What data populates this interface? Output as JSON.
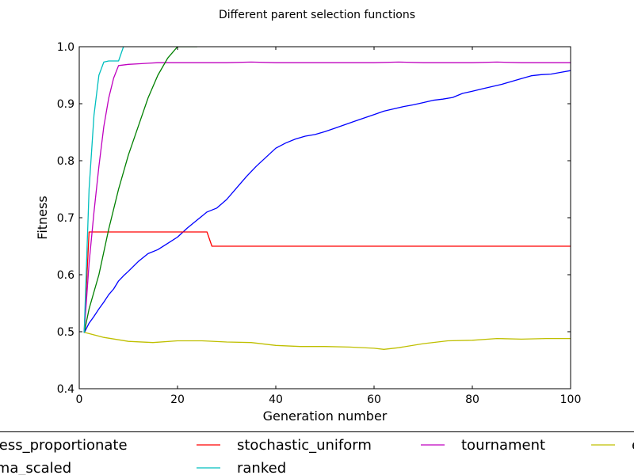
{
  "chart_data": {
    "type": "line",
    "title": "Different parent selection functions",
    "xlabel": "Generation number",
    "ylabel": "Fitness",
    "xlim": [
      0,
      100
    ],
    "ylim": [
      0.4,
      1.0
    ],
    "xticks": [
      0,
      20,
      40,
      60,
      80,
      100
    ],
    "yticks": [
      0.4,
      0.5,
      0.6,
      0.7,
      0.8,
      0.9,
      1.0
    ],
    "xtick_labels": [
      "0",
      "20",
      "40",
      "60",
      "80",
      "100"
    ],
    "ytick_labels": [
      "0.4",
      "0.5",
      "0.6",
      "0.7",
      "0.8",
      "0.9",
      "1.0"
    ],
    "grid": false,
    "legend_position": "bottom, outside plot, 4 columns",
    "legend_items": [
      {
        "label": "fitness_proportionate",
        "color": "#0000ff"
      },
      {
        "label": "stochastic_uniform",
        "color": "#ff0000"
      },
      {
        "label": "tournament",
        "color": "#bf00bf"
      },
      {
        "label": "e",
        "color": "#bfbf00"
      },
      {
        "label": "sigma_scaled",
        "color": "#008000"
      },
      {
        "label": "ranked",
        "color": "#00bfbf"
      }
    ],
    "series": [
      {
        "name": "fitness_proportionate",
        "color": "#0000ff",
        "x": [
          1,
          2,
          3,
          4,
          5,
          6,
          7,
          8,
          9,
          10,
          12,
          14,
          16,
          18,
          20,
          22,
          24,
          26,
          28,
          30,
          32,
          34,
          36,
          38,
          40,
          42,
          44,
          46,
          48,
          50,
          52,
          54,
          56,
          58,
          60,
          62,
          64,
          66,
          68,
          70,
          72,
          74,
          76,
          78,
          80,
          82,
          84,
          86,
          88,
          90,
          92,
          94,
          96,
          98,
          100
        ],
        "y": [
          0.498,
          0.515,
          0.527,
          0.54,
          0.552,
          0.565,
          0.575,
          0.589,
          0.598,
          0.606,
          0.623,
          0.637,
          0.644,
          0.655,
          0.666,
          0.682,
          0.696,
          0.71,
          0.717,
          0.732,
          0.752,
          0.772,
          0.79,
          0.806,
          0.822,
          0.831,
          0.838,
          0.843,
          0.846,
          0.851,
          0.857,
          0.863,
          0.869,
          0.875,
          0.881,
          0.887,
          0.891,
          0.895,
          0.898,
          0.902,
          0.906,
          0.908,
          0.911,
          0.918,
          0.922,
          0.926,
          0.93,
          0.934,
          0.939,
          0.944,
          0.949,
          0.951,
          0.952,
          0.955,
          0.958
        ]
      },
      {
        "name": "stochastic_uniform",
        "color": "#ff0000",
        "x": [
          1,
          2,
          5,
          10,
          15,
          20,
          25,
          26,
          27,
          30,
          40,
          50,
          60,
          70,
          80,
          90,
          100
        ],
        "y": [
          0.498,
          0.675,
          0.675,
          0.675,
          0.675,
          0.675,
          0.675,
          0.675,
          0.65,
          0.65,
          0.65,
          0.65,
          0.65,
          0.65,
          0.65,
          0.65,
          0.65
        ]
      },
      {
        "name": "tournament",
        "color": "#bf00bf",
        "x": [
          1,
          2,
          3,
          4,
          5,
          6,
          7,
          8,
          10,
          12,
          14,
          16,
          18,
          20,
          25,
          30,
          35,
          40,
          45,
          50,
          55,
          60,
          65,
          70,
          75,
          80,
          85,
          90,
          95,
          100
        ],
        "y": [
          0.498,
          0.62,
          0.71,
          0.79,
          0.86,
          0.91,
          0.945,
          0.967,
          0.969,
          0.97,
          0.971,
          0.972,
          0.972,
          0.972,
          0.972,
          0.972,
          0.973,
          0.972,
          0.972,
          0.972,
          0.972,
          0.972,
          0.973,
          0.972,
          0.972,
          0.972,
          0.973,
          0.972,
          0.972,
          0.972
        ]
      },
      {
        "name": "e",
        "color": "#bfbf00",
        "x": [
          1,
          5,
          10,
          15,
          20,
          25,
          30,
          35,
          40,
          45,
          50,
          55,
          60,
          62,
          65,
          70,
          75,
          80,
          85,
          90,
          95,
          100
        ],
        "y": [
          0.499,
          0.49,
          0.483,
          0.481,
          0.484,
          0.484,
          0.482,
          0.481,
          0.476,
          0.474,
          0.474,
          0.473,
          0.471,
          0.469,
          0.472,
          0.479,
          0.484,
          0.485,
          0.488,
          0.487,
          0.488,
          0.488
        ]
      },
      {
        "name": "sigma_scaled",
        "color": "#008000",
        "x": [
          1,
          2,
          4,
          6,
          8,
          10,
          12,
          14,
          16,
          18,
          20,
          22,
          24
        ],
        "y": [
          0.498,
          0.54,
          0.6,
          0.68,
          0.75,
          0.81,
          0.86,
          0.91,
          0.95,
          0.98,
          1.0,
          1.0,
          1.0
        ]
      },
      {
        "name": "ranked",
        "color": "#00bfbf",
        "x": [
          1,
          2,
          3,
          4,
          5,
          6,
          7,
          8,
          9
        ],
        "y": [
          0.498,
          0.75,
          0.88,
          0.95,
          0.973,
          0.975,
          0.975,
          0.975,
          1.0
        ]
      }
    ]
  }
}
